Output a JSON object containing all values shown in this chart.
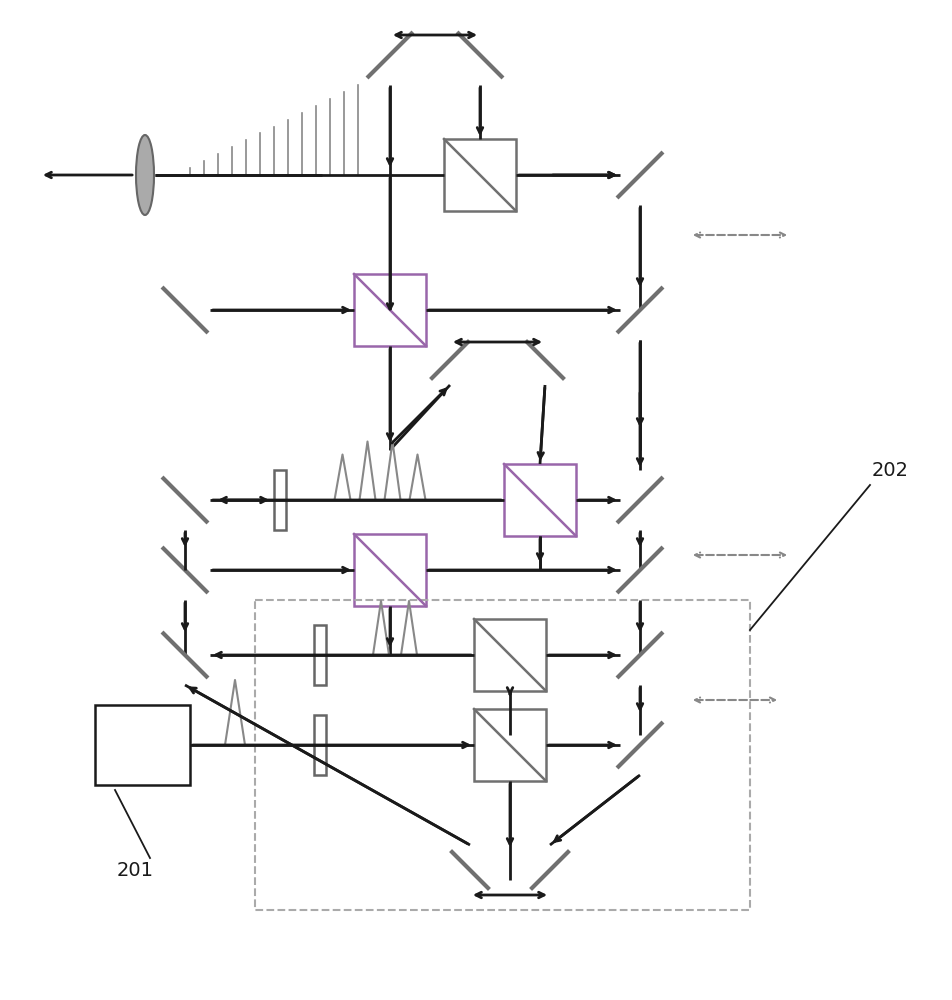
{
  "fig_width": 9.53,
  "fig_height": 10.0,
  "dpi": 100,
  "bg_color": "#ffffff",
  "line_color": "#1a1a1a",
  "mirror_color": "#707070",
  "bs_color_purple": "#9966aa",
  "bs_color_gray": "#707070",
  "dashed_color": "#888888",
  "label_201": "201",
  "label_202": "202",
  "lw_main": 2.0,
  "lw_mirror": 3.0
}
